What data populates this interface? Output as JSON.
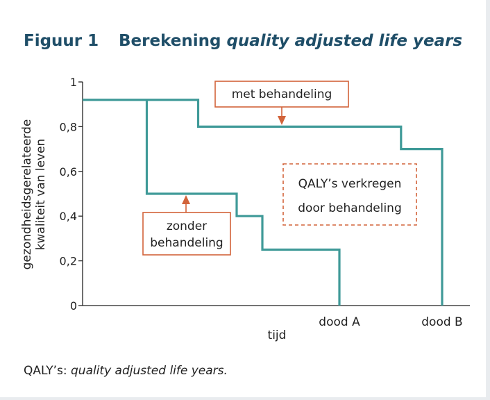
{
  "header": {
    "label": "Figuur 1",
    "title_main": "Berekening ",
    "title_italic": "quality adjusted life years"
  },
  "caption": {
    "prefix": "QALY’s: ",
    "italic": "quality adjusted life years."
  },
  "colors": {
    "series": "#3f9a98",
    "annotation": "#d2633a",
    "title": "#1f4e68",
    "text": "#222222"
  },
  "chart_data": {
    "type": "line",
    "title": "",
    "xlabel": "tijd",
    "ylabel_lines": [
      "gezondheidsgerelateerde",
      "kwaliteit van leven"
    ],
    "ylim": [
      0,
      1
    ],
    "xlim": [
      0,
      15
    ],
    "yticks": [
      0,
      0.2,
      0.4,
      0.6,
      0.8,
      1
    ],
    "ytick_labels": [
      "0",
      "0,2",
      "0,4",
      "0,6",
      "0,8",
      "1"
    ],
    "x_markers": [
      {
        "label": "dood A",
        "x": 10
      },
      {
        "label": "dood B",
        "x": 14
      }
    ],
    "grid": false,
    "series": [
      {
        "name": "met behandeling",
        "style": "step",
        "points": [
          [
            0,
            0.92
          ],
          [
            4.5,
            0.92
          ],
          [
            4.5,
            0.8
          ],
          [
            12.4,
            0.8
          ],
          [
            12.4,
            0.7
          ],
          [
            14,
            0.7
          ],
          [
            14,
            0
          ]
        ]
      },
      {
        "name": "zonder behandeling",
        "style": "step",
        "points": [
          [
            2.5,
            0.92
          ],
          [
            2.5,
            0.5
          ],
          [
            6,
            0.5
          ],
          [
            6,
            0.4
          ],
          [
            7,
            0.4
          ],
          [
            7,
            0.25
          ],
          [
            10,
            0.25
          ],
          [
            10,
            0
          ]
        ]
      }
    ],
    "annotations": {
      "met": "met behandeling",
      "zonder_line1": "zonder",
      "zonder_line2": "behandeling",
      "qaly_line1": "QALY’s verkregen",
      "qaly_line2": "door behandeling"
    }
  }
}
